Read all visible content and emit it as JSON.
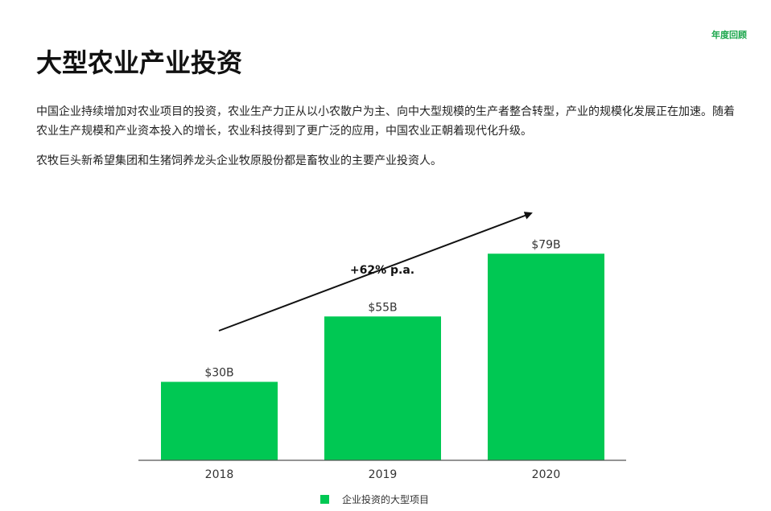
{
  "header": {
    "tag": "年度回顾",
    "title": "大型农业产业投资"
  },
  "body": {
    "paragraph1": "中国企业持续增加对农业项目的投资，农业生产力正从以小农散户为主、向中大型规模的生产者整合转型，产业的规模化发展正在加速。随着农业生产规模和产业资本投入的增长，农业科技得到了更广泛的应用，中国农业正朝着现代化升级。",
    "paragraph2": "农牧巨头新希望集团和生猪饲养龙头企业牧原股份都是畜牧业的主要产业投资人。"
  },
  "colors": {
    "accent": "#00c853",
    "tag": "#1aa64b",
    "axis": "#555555",
    "arrow": "#111111"
  },
  "chart_data": {
    "type": "bar",
    "categories": [
      "2018",
      "2019",
      "2020"
    ],
    "series": [
      {
        "name": "企业投资的大型项目",
        "values": [
          30,
          55,
          79
        ]
      }
    ],
    "data_labels": [
      "$30B",
      "$55B",
      "$79B"
    ],
    "annotation": "+62% p.a.",
    "title": "",
    "xlabel": "",
    "ylabel": "",
    "ylim": [
      0,
      100
    ],
    "grid": false,
    "legend": "bottom"
  }
}
